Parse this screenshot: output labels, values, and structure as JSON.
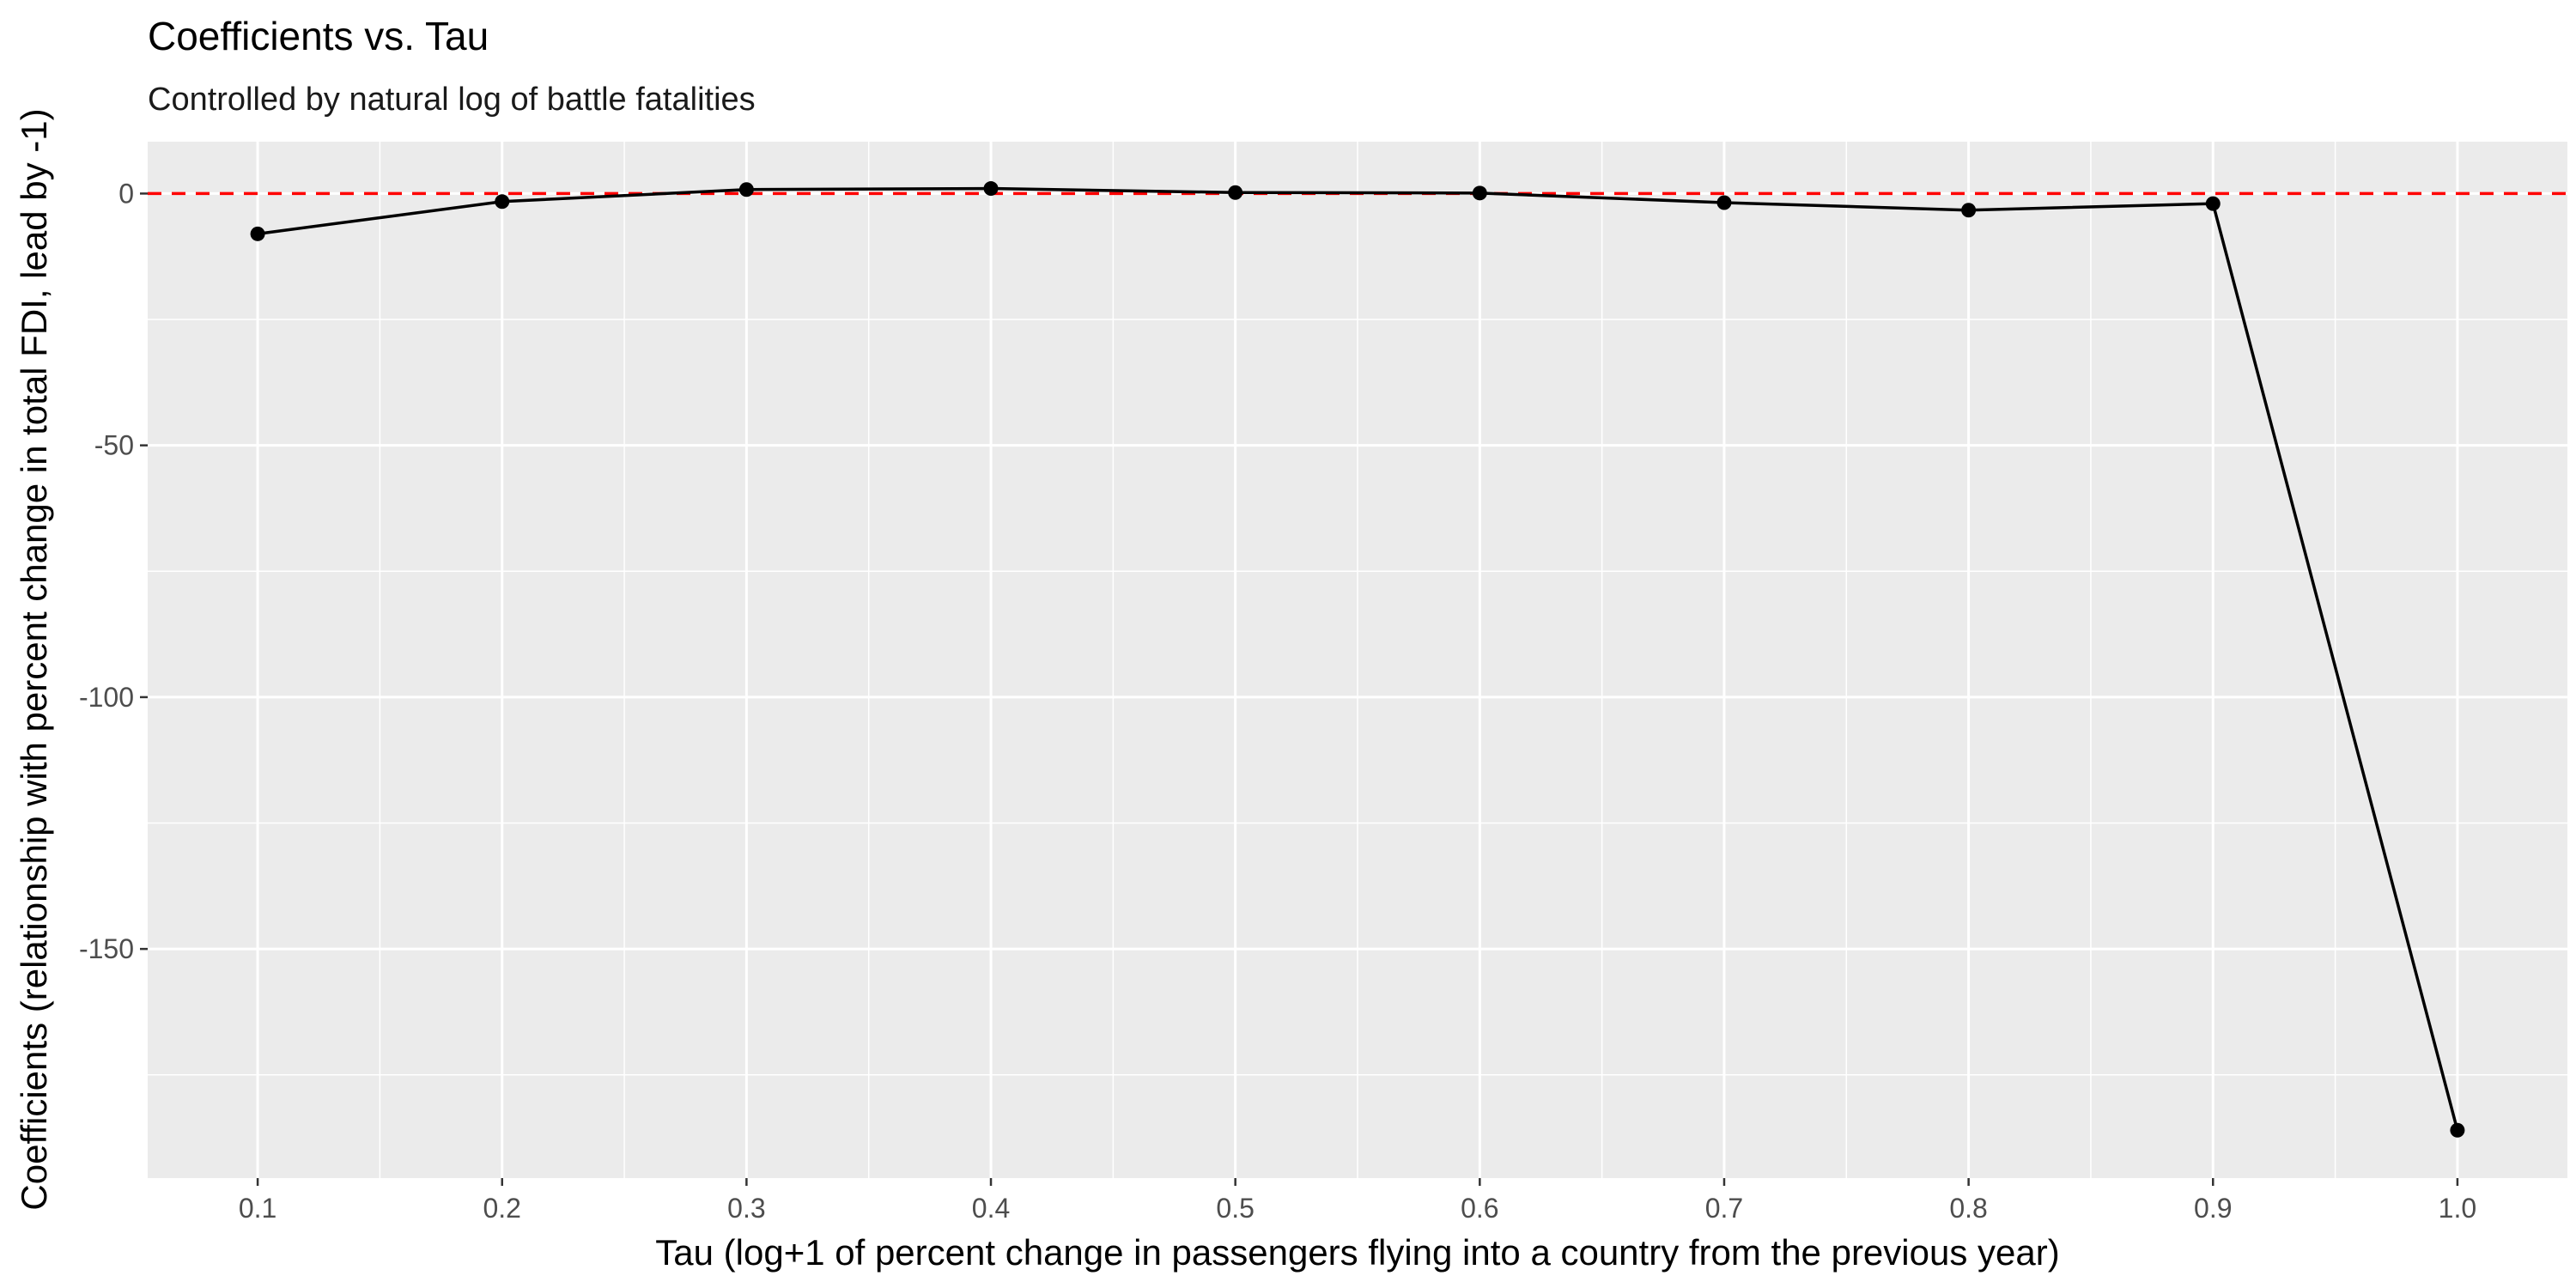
{
  "chart_data": {
    "type": "line",
    "title": "Coefficients vs. Tau",
    "subtitle": "Controlled by natural log of battle fatalities",
    "xlabel": "Tau (log+1 of percent change in passengers flying into a country from the previous year)",
    "ylabel": "Coefficients (relationship with percent change in total FDI, lead by -1)",
    "x": [
      0.1,
      0.2,
      0.3,
      0.4,
      0.5,
      0.6,
      0.7,
      0.8,
      0.9,
      1.0
    ],
    "series": [
      {
        "values": [
          -8.0,
          -1.6,
          0.8,
          1.0,
          0.2,
          0.1,
          -1.8,
          -3.3,
          -2.0,
          -186.0
        ]
      }
    ],
    "x_ticks": [
      "0.1",
      "0.2",
      "0.3",
      "0.4",
      "0.5",
      "0.6",
      "0.7",
      "0.8",
      "0.9",
      "1.0"
    ],
    "y_ticks": [
      "0",
      "-50",
      "-100",
      "-150"
    ],
    "y_tick_values": [
      0,
      -50,
      -100,
      -150
    ],
    "xlim": [
      0.055,
      1.045
    ],
    "ylim": [
      -195.5,
      10.3
    ],
    "reference_line": {
      "y": 0,
      "style": "dashed",
      "color": "#ff0000"
    },
    "grid": true,
    "colors": {
      "panel_background": "#ebebeb",
      "grid_major": "#ffffff",
      "line": "#000000",
      "points": "#000000"
    }
  }
}
